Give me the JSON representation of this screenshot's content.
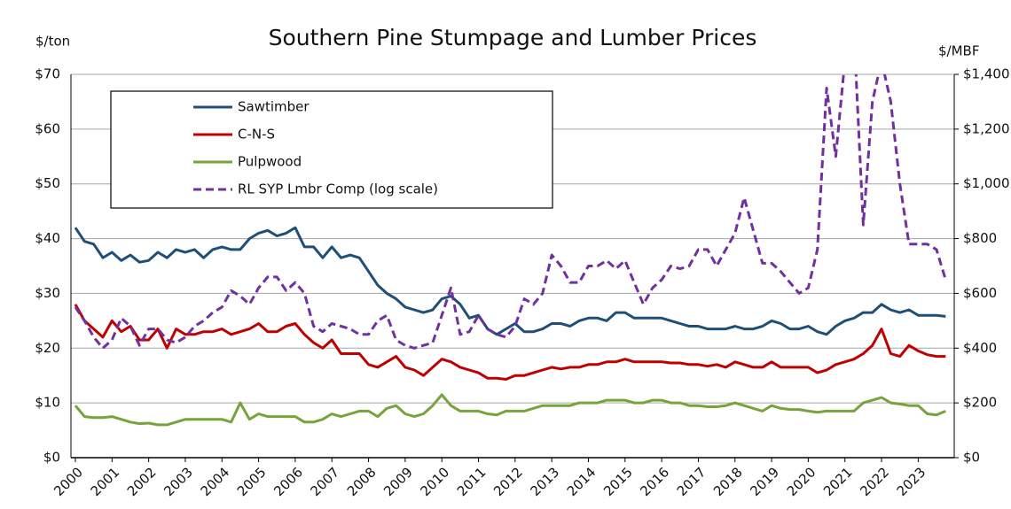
{
  "chart_data": {
    "type": "line",
    "title": "Southern Pine Stumpage and Lumber Prices",
    "y_label": "$/ton",
    "y2_label": "$/MBF",
    "categories": [
      "2000",
      null,
      null,
      null,
      "2001",
      null,
      null,
      null,
      "2002",
      null,
      null,
      null,
      "2003",
      null,
      null,
      null,
      "2004",
      null,
      null,
      null,
      "2005",
      null,
      null,
      null,
      "2006",
      null,
      null,
      null,
      "2007",
      null,
      null,
      null,
      "2008",
      null,
      null,
      null,
      "2009",
      null,
      null,
      null,
      "2010",
      null,
      null,
      null,
      "2011",
      null,
      null,
      null,
      "2012",
      null,
      null,
      null,
      "2013",
      null,
      null,
      null,
      "2014",
      null,
      null,
      null,
      "2015",
      null,
      null,
      null,
      "2016",
      null,
      null,
      null,
      "2017",
      null,
      null,
      null,
      "2018",
      null,
      null,
      null,
      "2019",
      null,
      null,
      null,
      "2020",
      null,
      null,
      null,
      "2021",
      null,
      null,
      null,
      "2022",
      null,
      null,
      null,
      "2023",
      null,
      null,
      null
    ],
    "series": [
      {
        "name": "Sawtimber",
        "color": "#1f4e79",
        "values": [
          42,
          39.5,
          39,
          36.5,
          37.5,
          36,
          37,
          35.7,
          36,
          37.5,
          36.5,
          38,
          37.5,
          38,
          36.5,
          38,
          38.5,
          38,
          38,
          40,
          41,
          41.5,
          40.5,
          41,
          42,
          38.5,
          38.5,
          36.5,
          38.5,
          36.5,
          37,
          36.5,
          34,
          31.5,
          30,
          29,
          27.5,
          27,
          26.5,
          27,
          29,
          29.5,
          28,
          25.5,
          26,
          23.5,
          22.5,
          23.5,
          24.5,
          23,
          23,
          23.5,
          24.5,
          24.5,
          24,
          25,
          25.5,
          25.5,
          25,
          26.5,
          26.5,
          25.5,
          25.5,
          25.5,
          25.5,
          25,
          24.5,
          24,
          24,
          23.5,
          23.5,
          23.5,
          24,
          23.5,
          23.5,
          24,
          25,
          24.5,
          23.5,
          23.5,
          24,
          23,
          22.5,
          24,
          25,
          25.5,
          26.5,
          26.5,
          28,
          27,
          26.5,
          27,
          26,
          26,
          26,
          25.8
        ]
      },
      {
        "name": "C-N-S",
        "color": "#c00000",
        "values": [
          28,
          25,
          23.5,
          22,
          25,
          23,
          24,
          21.5,
          21.5,
          23.5,
          20,
          23.5,
          22.5,
          22.5,
          23,
          23,
          23.5,
          22.5,
          23,
          23.5,
          24.5,
          23,
          23,
          24,
          24.5,
          22.5,
          21,
          20,
          21.5,
          19,
          19,
          19,
          17,
          16.5,
          17.5,
          18.5,
          16.5,
          16,
          15,
          16.5,
          18,
          17.5,
          16.5,
          16,
          15.5,
          14.5,
          14.5,
          14.3,
          15,
          15,
          15.5,
          16,
          16.5,
          16.2,
          16.5,
          16.5,
          17,
          17,
          17.5,
          17.5,
          18,
          17.5,
          17.5,
          17.5,
          17.5,
          17.3,
          17.3,
          17,
          17,
          16.7,
          17,
          16.5,
          17.5,
          17,
          16.5,
          16.5,
          17.5,
          16.5,
          16.5,
          16.5,
          16.5,
          15.5,
          16,
          17,
          17.5,
          18,
          19,
          20.5,
          23.5,
          19,
          18.5,
          20.5,
          19.5,
          18.8,
          18.5,
          18.5
        ]
      },
      {
        "name": "Pulpwood",
        "color": "#77a33b",
        "values": [
          9.5,
          7.5,
          7.3,
          7.3,
          7.5,
          7,
          6.5,
          6.2,
          6.3,
          6,
          6,
          6.5,
          7,
          7,
          7,
          7,
          7,
          6.5,
          10,
          7,
          8,
          7.5,
          7.5,
          7.5,
          7.5,
          6.5,
          6.5,
          7,
          8,
          7.5,
          8,
          8.5,
          8.5,
          7.5,
          9,
          9.5,
          8,
          7.5,
          8,
          9.5,
          11.5,
          9.5,
          8.5,
          8.5,
          8.5,
          8,
          7.8,
          8.5,
          8.5,
          8.5,
          9,
          9.5,
          9.5,
          9.5,
          9.5,
          10,
          10,
          10,
          10.5,
          10.5,
          10.5,
          10,
          10,
          10.5,
          10.5,
          10,
          10,
          9.5,
          9.5,
          9.3,
          9.3,
          9.5,
          10,
          9.5,
          9,
          8.5,
          9.5,
          9,
          8.8,
          8.8,
          8.5,
          8.3,
          8.5,
          8.5,
          8.5,
          8.5,
          10,
          10.5,
          11,
          10,
          9.8,
          9.5,
          9.5,
          8,
          7.8,
          8.5
        ]
      },
      {
        "name": "RL SYP Lmbr Comp (log scale)",
        "color": "#7030a0",
        "axis": "y2",
        "dashed": true,
        "values": [
          550,
          500,
          440,
          400,
          430,
          510,
          480,
          410,
          470,
          470,
          430,
          420,
          440,
          480,
          500,
          530,
          550,
          610,
          590,
          560,
          620,
          660,
          660,
          610,
          640,
          600,
          480,
          460,
          490,
          480,
          470,
          450,
          450,
          500,
          520,
          430,
          410,
          400,
          410,
          420,
          520,
          620,
          450,
          460,
          520,
          470,
          450,
          440,
          480,
          580,
          560,
          600,
          740,
          700,
          640,
          640,
          700,
          700,
          720,
          690,
          720,
          640,
          560,
          620,
          650,
          700,
          690,
          700,
          760,
          760,
          700,
          760,
          820,
          950,
          830,
          710,
          710,
          680,
          640,
          600,
          620,
          760,
          1350,
          1100,
          1450,
          1550,
          850,
          1300,
          1450,
          1300,
          1000,
          780,
          780,
          780,
          760,
          650
        ]
      }
    ],
    "ylim": [
      0,
      70
    ],
    "yticks": [
      {
        "value": 0,
        "label": "$0"
      },
      {
        "value": 10,
        "label": "$10"
      },
      {
        "value": 20,
        "label": "$20"
      },
      {
        "value": 30,
        "label": "$30"
      },
      {
        "value": 40,
        "label": "$40"
      },
      {
        "value": 50,
        "label": "$50"
      },
      {
        "value": 60,
        "label": "$60"
      },
      {
        "value": 70,
        "label": "$70"
      }
    ],
    "y2lim": [
      0,
      1400
    ],
    "y2ticks": [
      {
        "value": 0,
        "label": "$0"
      },
      {
        "value": 200,
        "label": "$200"
      },
      {
        "value": 400,
        "label": "$400"
      },
      {
        "value": 600,
        "label": "$600"
      },
      {
        "value": 800,
        "label": "$800"
      },
      {
        "value": 1000,
        "label": "$1,000"
      },
      {
        "value": 1200,
        "label": "$1,200"
      },
      {
        "value": 1400,
        "label": "$1,400"
      }
    ],
    "grid": true,
    "legend": "upper left"
  }
}
